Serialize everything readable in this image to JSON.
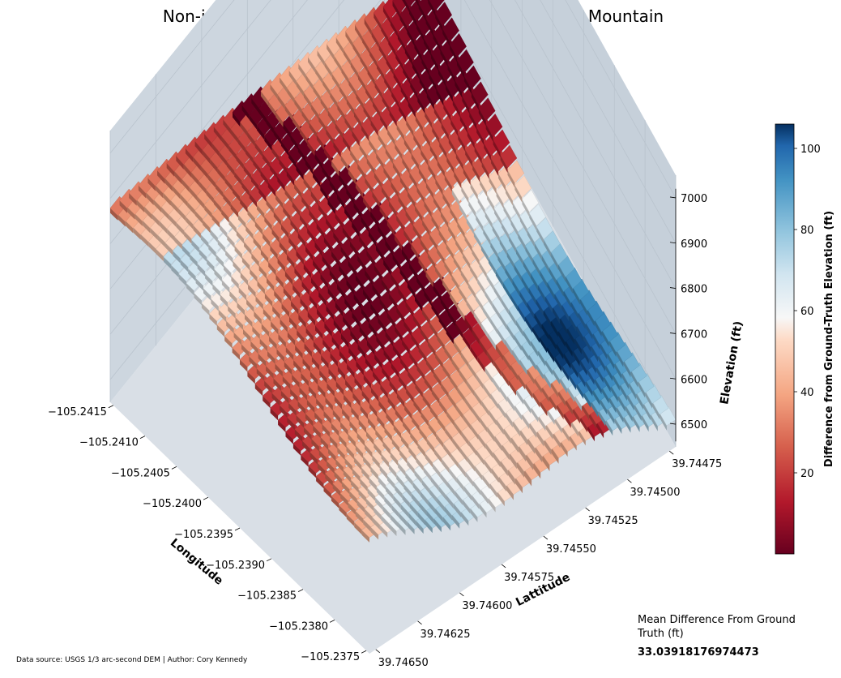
{
  "chart_data": {
    "type": "surface3d",
    "title": "Non-interpolated Tile Surface for Section of Lookout Mountain",
    "xlabel": "Longitude",
    "ylabel": "Lattitude",
    "zlabel": "Elevation (ft)",
    "x_ticks": [
      "−105.2415",
      "−105.2410",
      "−105.2405",
      "−105.2400",
      "−105.2395",
      "−105.2390",
      "−105.2385",
      "−105.2380",
      "−105.2375"
    ],
    "y_ticks": [
      "39.74475",
      "39.74500",
      "39.74525",
      "39.74550",
      "39.74575",
      "39.74600",
      "39.74625",
      "39.74650"
    ],
    "z_ticks": [
      "6500",
      "6600",
      "6700",
      "6800",
      "6900",
      "7000"
    ],
    "xlim": [
      -105.2417,
      -105.2374
    ],
    "ylim": [
      39.74465,
      39.74655
    ],
    "zlim": [
      6450,
      7050
    ],
    "colorbar": {
      "label": "Difference from Ground-Truth Elevation (ft)",
      "colormap": "RdBu",
      "range": [
        0,
        106
      ],
      "ticks": [
        "20",
        "40",
        "60",
        "80",
        "100"
      ]
    },
    "colors": {
      "low": "#67001f",
      "high": "#053061",
      "pane": "#cdd6df",
      "grid": "#b9c3cd"
    }
  },
  "stats": {
    "label": "Mean Difference From Ground Truth (ft)",
    "value": "33.03918176974473"
  },
  "footer": "Data source: USGS 1/3 arc-second DEM | Author: Cory Kennedy"
}
